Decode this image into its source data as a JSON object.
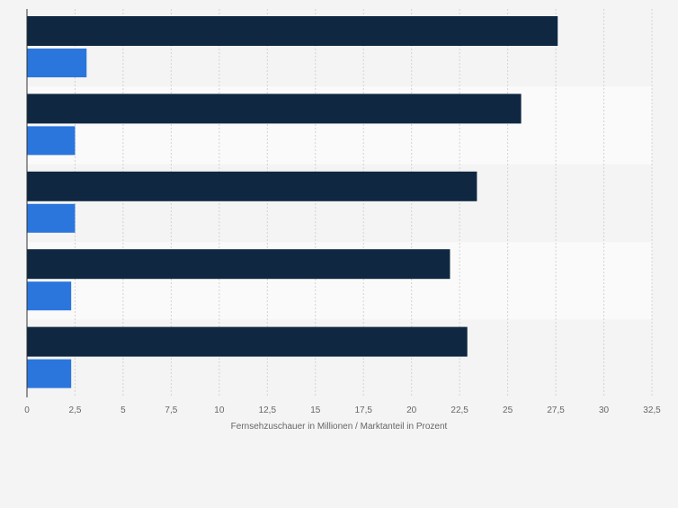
{
  "chart_data": {
    "type": "bar",
    "orientation": "horizontal",
    "categories": [
      "",
      "",
      "",
      "",
      ""
    ],
    "series": [
      {
        "values": [
          27.6,
          25.7,
          23.4,
          22.0,
          22.9
        ],
        "color": "#0f2741"
      },
      {
        "values": [
          3.1,
          2.5,
          2.5,
          2.3,
          2.3
        ],
        "color": "#2a76dd"
      }
    ],
    "x_ticks": [
      "0",
      "2,5",
      "5",
      "7,5",
      "10",
      "12,5",
      "15",
      "17,5",
      "20",
      "22,5",
      "25",
      "27,5",
      "30",
      "32,5"
    ],
    "xlim": [
      0,
      32.5
    ],
    "xlabel": "Fernsehzuschauer in Millionen / Marktanteil in Prozent",
    "ylabel": "",
    "grid": true,
    "legend": "none"
  }
}
